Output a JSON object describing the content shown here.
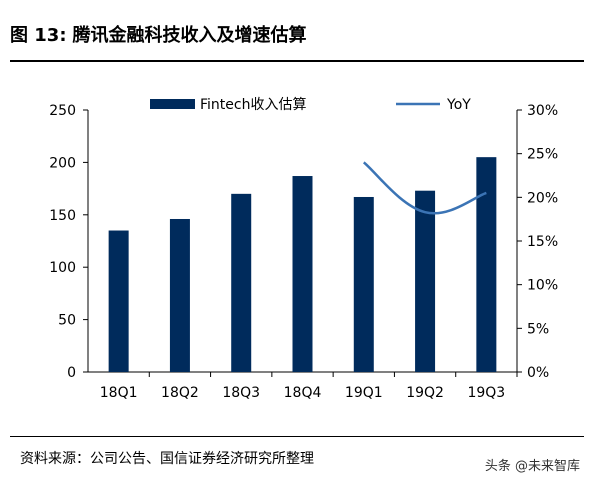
{
  "header": {
    "figure_label": "图 13:",
    "title": "腾讯金融科技收入及增速估算"
  },
  "source": "资料来源：公司公告、国信证券经济研究所整理",
  "watermark": "头条 @未来智库",
  "colors": {
    "bar": "#002B5C",
    "line": "#3B74B5",
    "axis": "#000000"
  },
  "chart_data": {
    "type": "bar",
    "categories": [
      "18Q1",
      "18Q2",
      "18Q3",
      "18Q4",
      "19Q1",
      "19Q2",
      "19Q3"
    ],
    "series": [
      {
        "name": "Fintech收入估算",
        "type": "bar",
        "axis": "left",
        "values": [
          135,
          146,
          170,
          187,
          167,
          173,
          205
        ]
      },
      {
        "name": "YoY",
        "type": "line",
        "axis": "right",
        "values": [
          null,
          null,
          null,
          null,
          24.0,
          18.3,
          20.5
        ],
        "unit": "%"
      }
    ],
    "ylim": [
      0,
      250
    ],
    "y_ticks": [
      "0",
      "50",
      "100",
      "150",
      "200",
      "250"
    ],
    "y2lim": [
      0,
      30
    ],
    "y2_ticks": [
      "0%",
      "5%",
      "10%",
      "15%",
      "20%",
      "25%",
      "30%"
    ],
    "title": "",
    "xlabel": "",
    "ylabel": "",
    "legend_position": "top",
    "grid": false
  }
}
